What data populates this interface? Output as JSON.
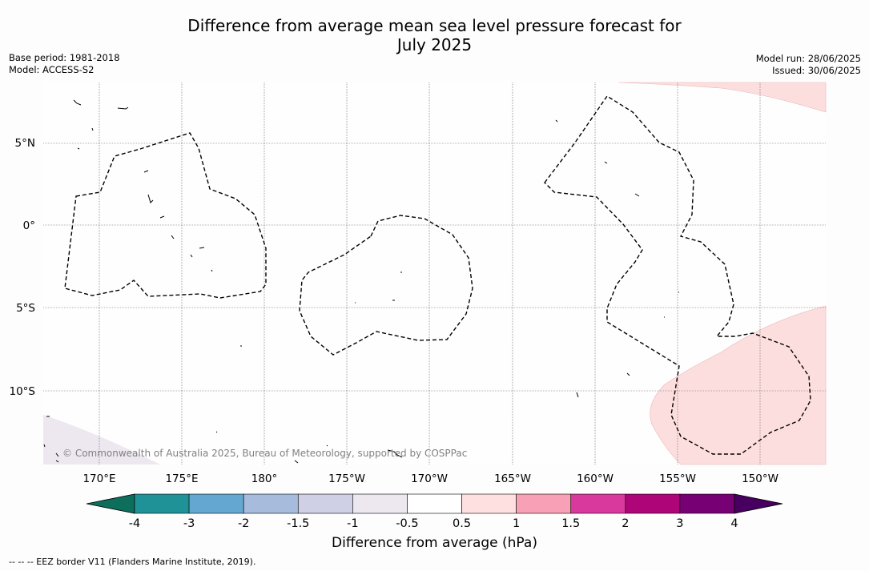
{
  "title_line1": "Difference from average mean sea level pressure forecast for",
  "title_line2": "July 2025",
  "base_period": "Base period: 1981-2018",
  "model": "Model: ACCESS-S2",
  "model_run": "Model run: 28/06/2025",
  "issued": "Issued: 30/06/2025",
  "copyright": "© Commonwealth of Australia 2025, Bureau of Meteorology, supported by COSPPac",
  "lat_labels": [
    "5°N",
    "0°",
    "5°S",
    "10°S"
  ],
  "lon_labels": [
    "170°E",
    "175°E",
    "180°",
    "175°W",
    "170°W",
    "165°W",
    "160°W",
    "155°W",
    "150°W"
  ],
  "colorbar": {
    "title": "Difference from average (hPa)",
    "ticks": [
      "-4",
      "-3",
      "-2",
      "-1.5",
      "-1",
      "-0.5",
      "0.5",
      "1",
      "1.5",
      "2",
      "3",
      "4"
    ],
    "colors": [
      "#0d6e5c",
      "#1f9297",
      "#64a8d1",
      "#a7bcdc",
      "#cfcfe5",
      "#ede8ef",
      "#ffffff",
      "#fde0df",
      "#f8a0b5",
      "#d9399d",
      "#ae0579",
      "#780075",
      "#480060"
    ]
  },
  "footer": "-- -- -- EEZ border V11 (Flanders Marine Institute, 2019)."
}
